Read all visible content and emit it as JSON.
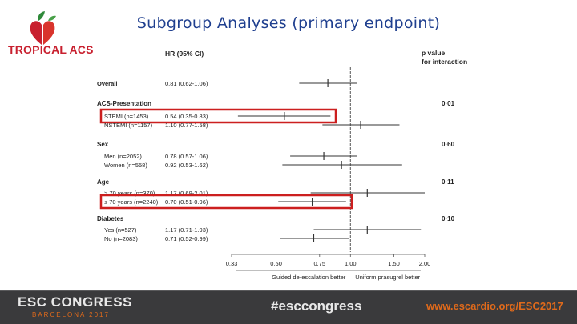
{
  "slide": {
    "title": "Subgroup Analyses (primary endpoint)",
    "logo_text": "TROPICAL ACS"
  },
  "footer": {
    "congress": "ESC CONGRESS",
    "city": "BARCELONA 2017",
    "hashtag": "#esccongress",
    "website": "www.escardio.org/ESC2017"
  },
  "colors": {
    "title": "#1f3f8f",
    "highlight_box": "#cc1f1f",
    "footer_bg": "#3a3a3c",
    "footer_accent": "#e06a1b"
  },
  "chart_data": {
    "type": "forest",
    "column_headers": {
      "hr": "HR (95% CI)",
      "p_value": "p value\nfor interaction"
    },
    "x_scale": "log",
    "xlim": [
      0.33,
      2.0
    ],
    "x_ticks": [
      "0.33",
      "0.50",
      "0.75",
      "1.00",
      "1.50",
      "2.00"
    ],
    "reference_line": 1.0,
    "x_label_left": "Guided de-escalation better",
    "x_label_right": "Uniform prasugrel better",
    "rows": [
      {
        "kind": "item",
        "label": "Overall",
        "bold": true,
        "hr_text": "0.81 (0.62-1.06)",
        "hr": 0.81,
        "lo": 0.62,
        "hi": 1.06
      },
      {
        "kind": "header",
        "label": "ACS-Presentation",
        "p": "0·01"
      },
      {
        "kind": "item",
        "label": "STEMI (n=1453)",
        "hr_text": "0.54 (0.35-0.83)",
        "hr": 0.54,
        "lo": 0.35,
        "hi": 0.83,
        "highlight": true
      },
      {
        "kind": "item",
        "label": "NSTEMI (n=1157)",
        "hr_text": "1.10 (0.77-1.58)",
        "hr": 1.1,
        "lo": 0.77,
        "hi": 1.58
      },
      {
        "kind": "header",
        "label": "Sex",
        "p": "0·60"
      },
      {
        "kind": "item",
        "label": "Men (n=2052)",
        "hr_text": "0.78 (0.57-1.06)",
        "hr": 0.78,
        "lo": 0.57,
        "hi": 1.06
      },
      {
        "kind": "item",
        "label": "Women (n=558)",
        "hr_text": "0.92 (0.53-1.62)",
        "hr": 0.92,
        "lo": 0.53,
        "hi": 1.62
      },
      {
        "kind": "header",
        "label": "Age",
        "p": "0·11"
      },
      {
        "kind": "item",
        "label": "> 70 years (n=370)",
        "hr_text": "1.17 (0.69-2.01)",
        "hr": 1.17,
        "lo": 0.69,
        "hi": 2.01
      },
      {
        "kind": "item",
        "label": "≤ 70 years (n=2240)",
        "hr_text": "0.70 (0.51-0.96)",
        "hr": 0.7,
        "lo": 0.51,
        "hi": 0.96,
        "highlight": true
      },
      {
        "kind": "header",
        "label": "Diabetes",
        "p": "0·10"
      },
      {
        "kind": "item",
        "label": "Yes (n=527)",
        "hr_text": "1.17 (0.71-1.93)",
        "hr": 1.17,
        "lo": 0.71,
        "hi": 1.93
      },
      {
        "kind": "item",
        "label": "No (n=2083)",
        "hr_text": "0.71 (0.52-0.99)",
        "hr": 0.71,
        "lo": 0.52,
        "hi": 0.99
      }
    ]
  }
}
